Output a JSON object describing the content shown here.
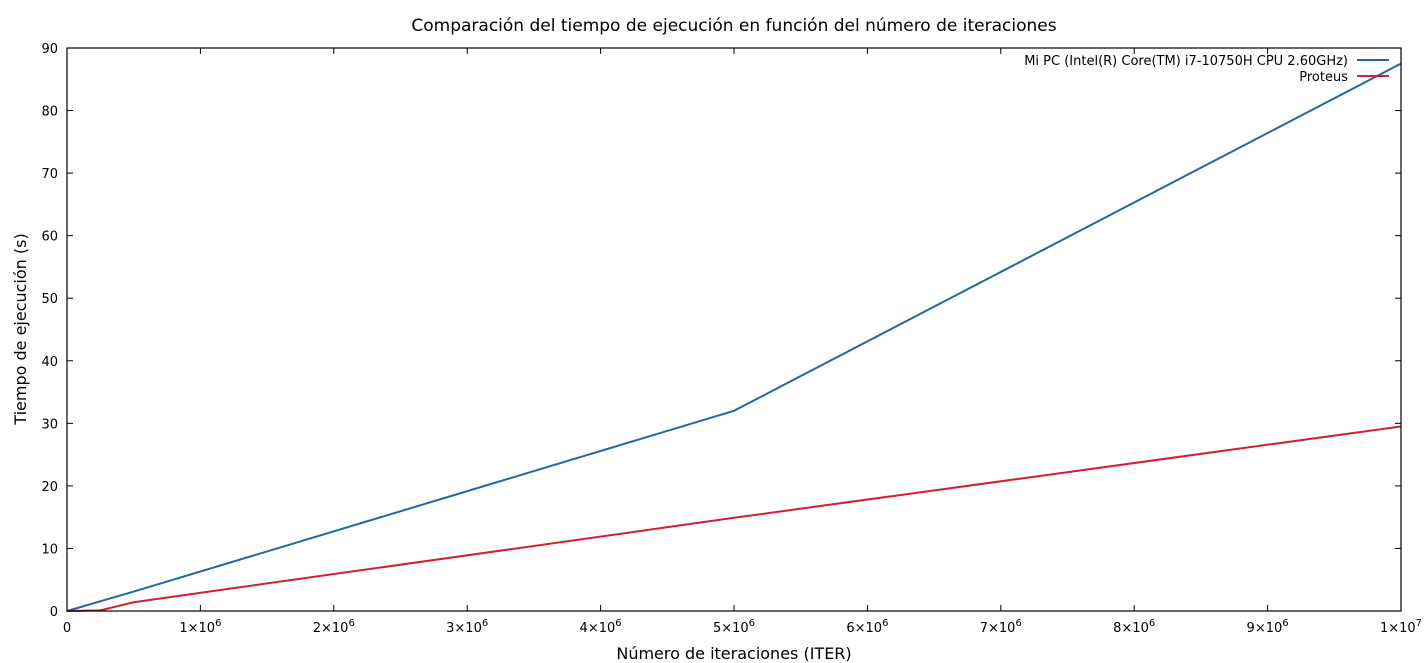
{
  "chart_data": {
    "type": "line",
    "title": "Comparación del tiempo de ejecución en función del número de iteraciones",
    "xlabel": "Número de iteraciones (ITER)",
    "ylabel": "Tiempo de ejecución (s)",
    "xlim": [
      0,
      10000000
    ],
    "ylim": [
      0,
      90
    ],
    "grid": false,
    "legend_position": "top-right",
    "x_ticks": [
      {
        "value": 0,
        "mantissa": "0",
        "exponent": ""
      },
      {
        "value": 1000000,
        "mantissa": "1×10",
        "exponent": "6"
      },
      {
        "value": 2000000,
        "mantissa": "2×10",
        "exponent": "6"
      },
      {
        "value": 3000000,
        "mantissa": "3×10",
        "exponent": "6"
      },
      {
        "value": 4000000,
        "mantissa": "4×10",
        "exponent": "6"
      },
      {
        "value": 5000000,
        "mantissa": "5×10",
        "exponent": "6"
      },
      {
        "value": 6000000,
        "mantissa": "6×10",
        "exponent": "6"
      },
      {
        "value": 7000000,
        "mantissa": "7×10",
        "exponent": "6"
      },
      {
        "value": 8000000,
        "mantissa": "8×10",
        "exponent": "6"
      },
      {
        "value": 9000000,
        "mantissa": "9×10",
        "exponent": "6"
      },
      {
        "value": 10000000,
        "mantissa": "1×10",
        "exponent": "7"
      }
    ],
    "y_ticks": [
      {
        "value": 0,
        "label": "0"
      },
      {
        "value": 10,
        "label": "10"
      },
      {
        "value": 20,
        "label": "20"
      },
      {
        "value": 30,
        "label": "30"
      },
      {
        "value": 40,
        "label": "40"
      },
      {
        "value": 50,
        "label": "50"
      },
      {
        "value": 60,
        "label": "60"
      },
      {
        "value": 70,
        "label": "70"
      },
      {
        "value": 80,
        "label": "80"
      },
      {
        "value": 90,
        "label": "90"
      }
    ],
    "series": [
      {
        "name": "Mi PC (Intel(R) Core(TM) i7-10750H CPU 2.60GHz)",
        "color": "#1f66aa",
        "points": [
          {
            "x": 0,
            "y": 0
          },
          {
            "x": 500000,
            "y": 3.1
          },
          {
            "x": 5000000,
            "y": 32
          },
          {
            "x": 10000000,
            "y": 87.5
          }
        ]
      },
      {
        "name": "Proteus",
        "color": "#d4202a",
        "points": [
          {
            "x": 0,
            "y": 0
          },
          {
            "x": 250000,
            "y": 0.1
          },
          {
            "x": 500000,
            "y": 1.4
          },
          {
            "x": 5000000,
            "y": 14.9
          },
          {
            "x": 10000000,
            "y": 29.5
          }
        ]
      }
    ]
  }
}
